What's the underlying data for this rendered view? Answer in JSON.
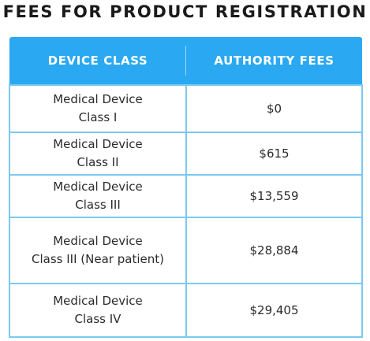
{
  "title": "FEES FOR PRODUCT REGISTRATION",
  "table": {
    "headers": {
      "device_class": "DEVICE CLASS",
      "authority_fees": "AUTHORITY FEES"
    },
    "rows": [
      {
        "class_line1": "Medical Device",
        "class_line2": "Class I",
        "fee": "$0"
      },
      {
        "class_line1": "Medical Device",
        "class_line2": "Class II",
        "fee": "$615"
      },
      {
        "class_line1": "Medical Device",
        "class_line2": "Class III",
        "fee": "$13,559"
      },
      {
        "class_line1": "Medical Device",
        "class_line2": "Class III (Near patient)",
        "fee": "$28,884"
      },
      {
        "class_line1": "Medical Device",
        "class_line2": "Class IV",
        "fee": "$29,405"
      }
    ]
  },
  "colors": {
    "header_background": "#2aa9f2",
    "border": "#7cc8f0",
    "title_text": "#1a1a1a",
    "cell_text": "#2b2b2b"
  }
}
